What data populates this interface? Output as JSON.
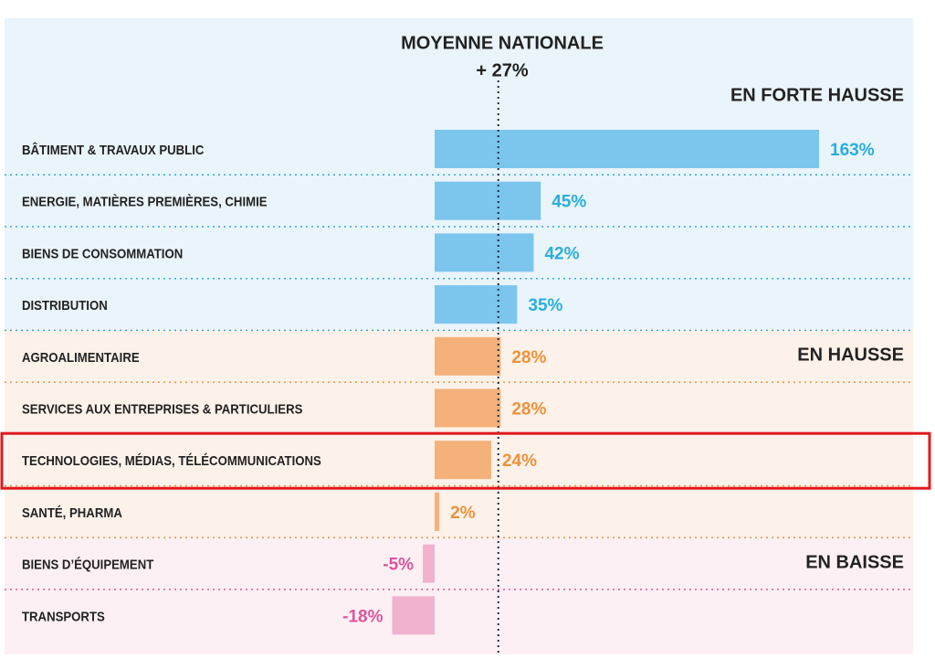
{
  "chart_data": {
    "type": "bar",
    "orientation": "horizontal",
    "title": "MOYENNE NATIONALE",
    "reference": {
      "value": 27,
      "label": "+ 27%"
    },
    "groups": [
      {
        "name": "EN FORTE HAUSSE",
        "color": "#7cc6ee",
        "label_color": "#29aee0",
        "background": "#eaf4fb",
        "categories": [
          "BÂTIMENT & TRAVAUX PUBLIC",
          "ENERGIE, MATIÈRES PREMIÈRES, CHIMIE",
          "BIENS DE CONSOMMATION",
          "DISTRIBUTION"
        ],
        "values": [
          163,
          45,
          42,
          35
        ],
        "value_labels": [
          "163%",
          "45%",
          "42%",
          "35%"
        ]
      },
      {
        "name": "EN HAUSSE",
        "color": "#f5b17a",
        "label_color": "#f0913a",
        "background": "#fdf2ea",
        "categories": [
          "AGROALIMENTAIRE",
          "SERVICES AUX  ENTREPRISES & PARTICULIERS",
          "TECHNOLOGIES, MÉDIAS, TÉLÉCOMMUNICATIONS",
          "SANTÉ, PHARMA"
        ],
        "values": [
          28,
          28,
          24,
          2
        ],
        "value_labels": [
          "28%",
          "28%",
          "24%",
          "2%"
        ]
      },
      {
        "name": "EN BAISSE",
        "color": "#f0b2cf",
        "label_color": "#e0559a",
        "background": "#fdf0f4",
        "categories": [
          "BIENS D’ÉQUIPEMENT",
          "TRANSPORTS"
        ],
        "values": [
          -5,
          -18
        ],
        "value_labels": [
          "-5%",
          "-18%"
        ]
      }
    ]
  }
}
